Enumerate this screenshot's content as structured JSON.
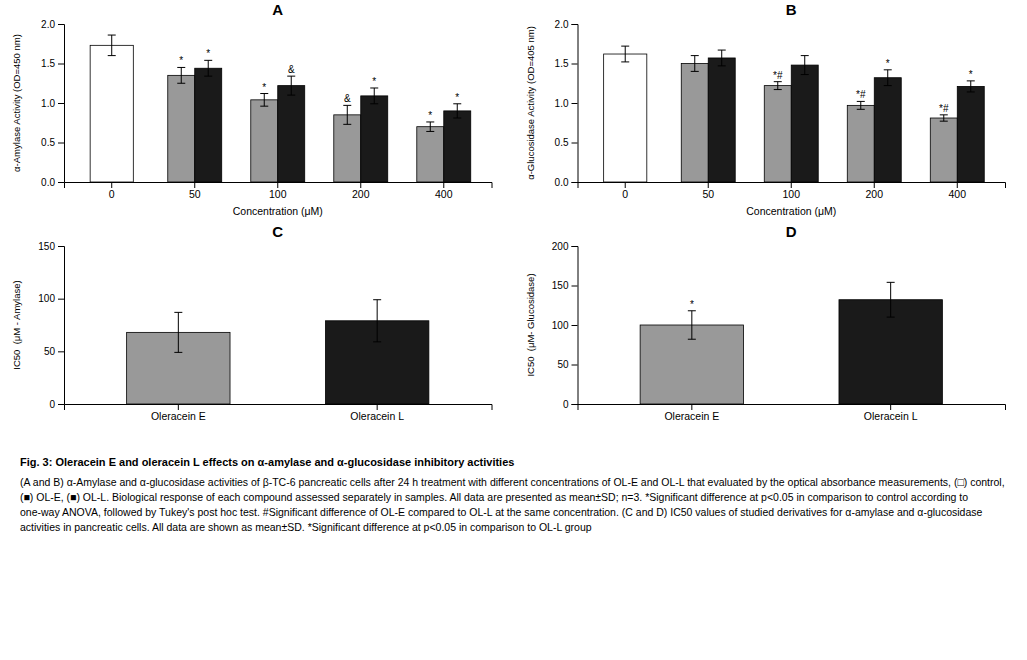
{
  "chart_data": [
    {
      "type": "bar",
      "title": "A",
      "ylabel": "α-Amylase Activity (OD=450 nm)",
      "xlabel": "Concentration (μM)",
      "categories": [
        "0",
        "50",
        "100",
        "200",
        "400"
      ],
      "series": [
        {
          "color": "#ffffff",
          "values": [
            1.73,
            null,
            null,
            null,
            null
          ],
          "errors": [
            0.13,
            null,
            null,
            null,
            null
          ],
          "annotations": [
            null,
            null,
            null,
            null,
            null
          ]
        },
        {
          "color": "#999999",
          "values": [
            null,
            1.35,
            1.04,
            0.85,
            0.7
          ],
          "errors": [
            null,
            0.1,
            0.08,
            0.12,
            0.06
          ],
          "annotations": [
            null,
            "*",
            "*",
            "&",
            "*"
          ]
        },
        {
          "color": "#1a1a1a",
          "values": [
            null,
            1.44,
            1.22,
            1.09,
            0.9
          ],
          "errors": [
            null,
            0.1,
            0.12,
            0.1,
            0.09
          ],
          "annotations": [
            null,
            "*",
            "&",
            "*",
            "*"
          ]
        }
      ],
      "ylim": [
        0.0,
        2.0
      ],
      "yticks": [
        {
          "value": 0.0,
          "label": "0.0"
        },
        0.5,
        {
          "value": 1.0,
          "label": "1.0"
        },
        1.5,
        {
          "value": 2.0,
          "label": "2.0"
        }
      ]
    },
    {
      "type": "bar",
      "title": "B",
      "ylabel": "α-Glucosidase Activity (OD=405 nm)",
      "xlabel": "Concentration (μM)",
      "categories": [
        "0",
        "50",
        "100",
        "200",
        "400"
      ],
      "series": [
        {
          "color": "#ffffff",
          "values": [
            1.62,
            null,
            null,
            null,
            null
          ],
          "errors": [
            0.1,
            null,
            null,
            null,
            null
          ],
          "annotations": [
            null,
            null,
            null,
            null,
            null
          ]
        },
        {
          "color": "#999999",
          "values": [
            null,
            1.5,
            1.22,
            0.97,
            0.81
          ],
          "errors": [
            null,
            0.1,
            0.05,
            0.05,
            0.04
          ],
          "annotations": [
            null,
            null,
            "*#",
            "*#",
            "*#"
          ]
        },
        {
          "color": "#1a1a1a",
          "values": [
            null,
            1.57,
            1.48,
            1.32,
            1.21
          ],
          "errors": [
            null,
            0.1,
            0.12,
            0.1,
            0.07
          ],
          "annotations": [
            null,
            null,
            null,
            "*",
            "*"
          ]
        }
      ],
      "ylim": [
        0.0,
        2.0
      ],
      "yticks": [
        {
          "value": 0.0,
          "label": "0.0"
        },
        0.5,
        {
          "value": 1.0,
          "label": "1.0"
        },
        1.5,
        {
          "value": 2.0,
          "label": "2.0"
        }
      ]
    },
    {
      "type": "bar",
      "title": "C",
      "ylabel": "IC50  (μM - Amylase)",
      "categories": [
        "Oleracein E",
        "Oleracein L"
      ],
      "values": [
        68,
        79
      ],
      "errors": [
        19,
        20
      ],
      "annotations": [
        null,
        null
      ],
      "colors": [
        "#999999",
        "#1a1a1a"
      ],
      "ylim": [
        0,
        150
      ],
      "yticks": [
        0,
        50,
        100,
        150
      ]
    },
    {
      "type": "bar",
      "title": "D",
      "ylabel": "IC50  (μM- Glucosidase)",
      "categories": [
        "Oleracein E",
        "Oleracein L"
      ],
      "values": [
        100,
        132
      ],
      "errors": [
        18,
        22
      ],
      "annotations": [
        "*",
        null
      ],
      "colors": [
        "#999999",
        "#1a1a1a"
      ],
      "ylim": [
        0,
        200
      ],
      "yticks": [
        0,
        50,
        100,
        150,
        200
      ]
    }
  ],
  "caption": {
    "title": "Fig. 3: Oleracein E and oleracein L effects on α-amylase and α-glucosidase inhibitory activities",
    "text": "(A and B) α-Amylase and α-glucosidase activities of β-TC-6 pancreatic cells after 24 h treatment with different concentrations of OL-E and OL-L that evaluated by the optical absorbance measurements, (□) control, (■) OL-E, (■) OL-L. Biological response of each compound assessed separately in samples. All data are presented as mean±SD; n=3. *Significant difference at p<0.05 in comparison to control according to one-way ANOVA, followed by Tukey's post hoc test. #Significant difference of OL-E compared to OL-L at the same concentration. (C and D) IC50 values of studied derivatives for α-amylase and α-glucosidase activities in pancreatic cells. All data are shown as mean±SD. *Significant difference at p<0.05 in comparison to OL-L group"
  }
}
